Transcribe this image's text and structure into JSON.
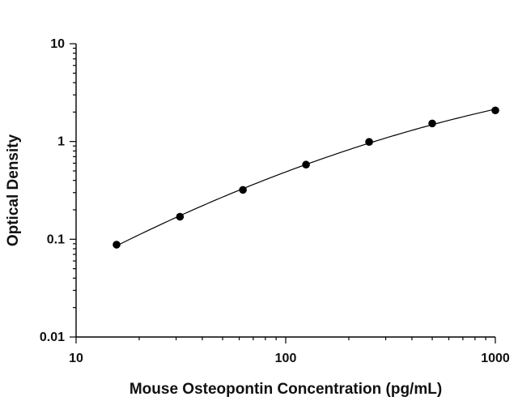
{
  "chart_data": {
    "type": "scatter",
    "title": "",
    "xlabel": "Mouse Osteopontin Concentration (pg/mL)",
    "ylabel": "Optical Density",
    "x_scale": "log",
    "y_scale": "log",
    "xlim": [
      10,
      1000
    ],
    "ylim": [
      0.01,
      10
    ],
    "x_ticks": [
      {
        "value": 10,
        "label": "10"
      },
      {
        "value": 100,
        "label": "100"
      },
      {
        "value": 1000,
        "label": "1000"
      }
    ],
    "y_ticks": [
      {
        "value": 0.01,
        "label": "0.01"
      },
      {
        "value": 0.1,
        "label": "0.1"
      },
      {
        "value": 1,
        "label": "1"
      },
      {
        "value": 10,
        "label": "10"
      }
    ],
    "grid": false,
    "legend": "none",
    "series": [
      {
        "x": [
          15.6,
          31.3,
          62.5,
          125,
          250,
          500,
          1000
        ],
        "y": [
          0.088,
          0.17,
          0.32,
          0.58,
          0.99,
          1.53,
          2.08
        ],
        "marker": "circle",
        "color": "#000000",
        "fit_line": true
      }
    ]
  }
}
